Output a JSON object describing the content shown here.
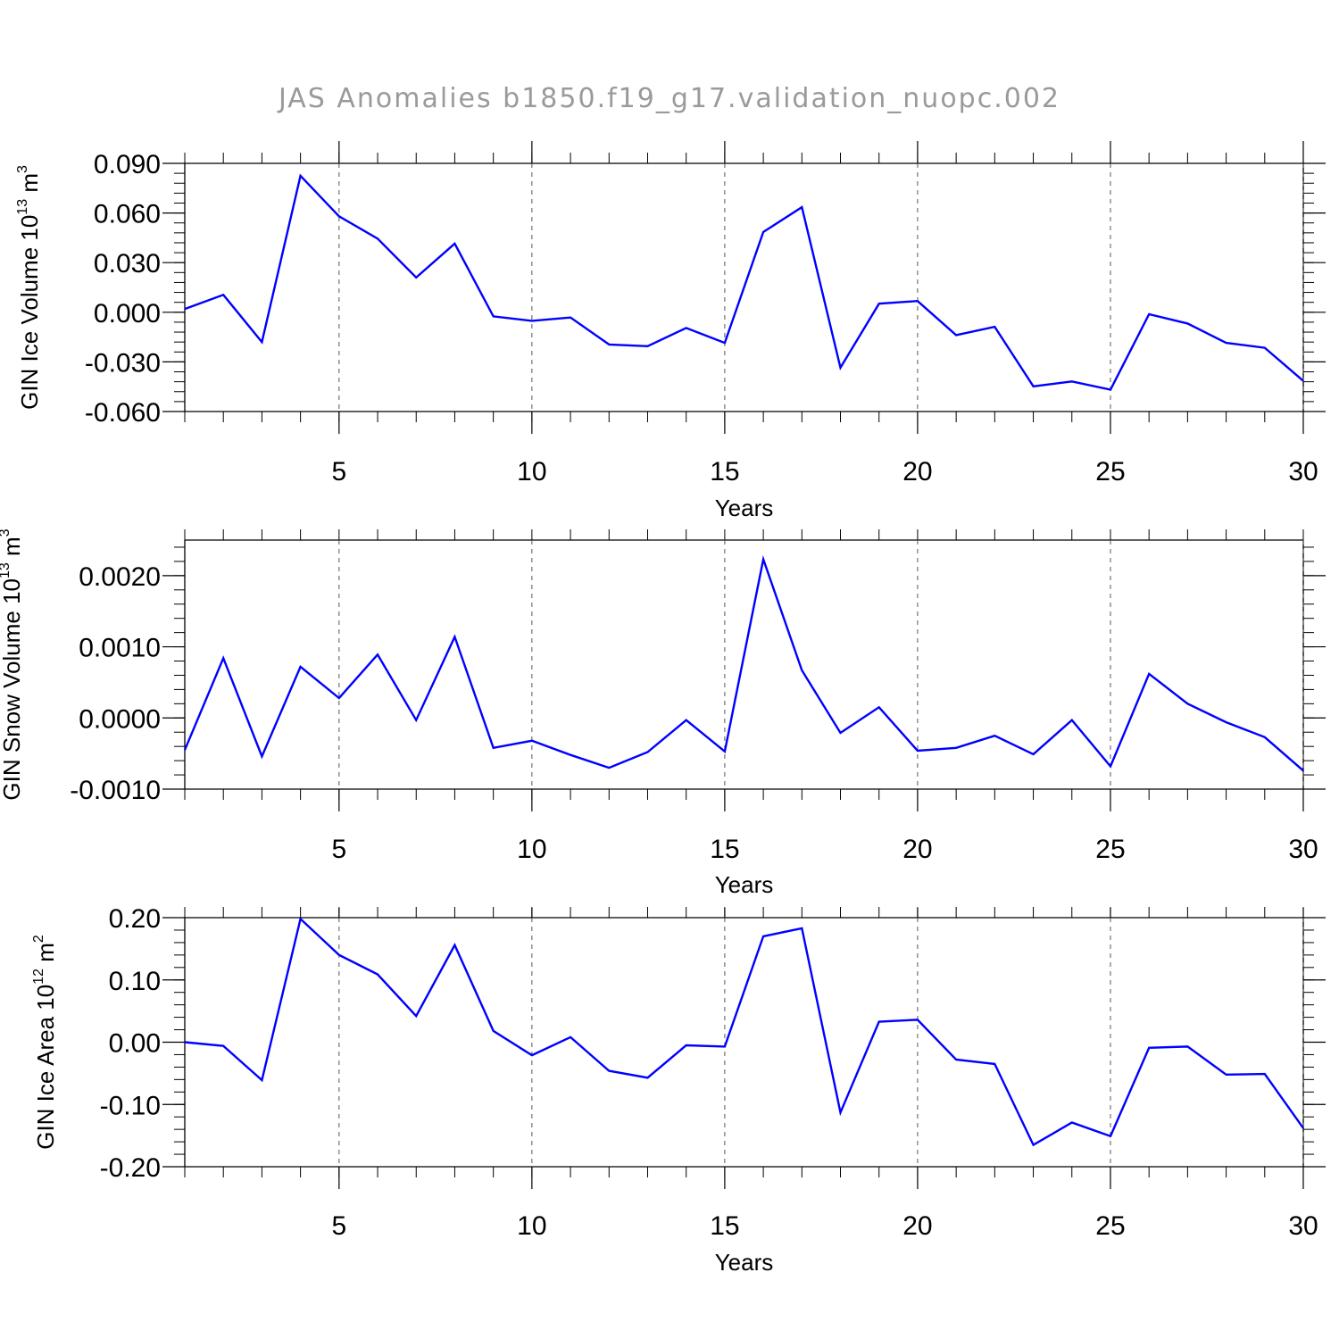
{
  "title": "JAS Anomalies b1850.f19_g17.validation_nuopc.002",
  "chart_data": [
    {
      "type": "line",
      "xlabel": "Years",
      "ylabel": {
        "text": "GIN Ice Volume 10",
        "exp": "13",
        "unit": " m",
        "unit_exp": "3"
      },
      "xlim": [
        1,
        30
      ],
      "ylim": [
        -0.06,
        0.09
      ],
      "xticks": [
        5,
        10,
        15,
        20,
        25,
        30
      ],
      "yticks": [
        -0.06,
        -0.03,
        0.0,
        0.03,
        0.06,
        0.09
      ],
      "yticklabels": [
        "-0.060",
        "-0.030",
        "0.000",
        "0.030",
        "0.060",
        "0.090"
      ],
      "grid_x": true,
      "color": "#0000ff",
      "x": [
        1,
        2,
        3,
        4,
        5,
        6,
        7,
        8,
        9,
        10,
        11,
        12,
        13,
        14,
        15,
        16,
        17,
        18,
        19,
        20,
        21,
        22,
        23,
        24,
        25,
        26,
        27,
        28,
        29,
        30
      ],
      "values": [
        0.002,
        0.0105,
        -0.018,
        0.0825,
        0.058,
        0.0445,
        0.021,
        0.0415,
        -0.0025,
        -0.0052,
        -0.0032,
        -0.0195,
        -0.0205,
        -0.0095,
        -0.0185,
        0.0485,
        0.0635,
        -0.0335,
        0.0052,
        0.0068,
        -0.0138,
        -0.0088,
        -0.0448,
        -0.0418,
        -0.0468,
        -0.0012,
        -0.0068,
        -0.0185,
        -0.0215,
        -0.0415
      ]
    },
    {
      "type": "line",
      "xlabel": "Years",
      "ylabel": {
        "text": "GIN Snow Volume 10",
        "exp": "13",
        "unit": " m",
        "unit_exp": "3"
      },
      "xlim": [
        1,
        30
      ],
      "ylim": [
        -0.001,
        0.0025
      ],
      "xticks": [
        5,
        10,
        15,
        20,
        25,
        30
      ],
      "yticks": [
        -0.001,
        0.0,
        0.001,
        0.002
      ],
      "yticklabels": [
        "-0.0010",
        "0.0000",
        "0.0010",
        "0.0020"
      ],
      "grid_x": true,
      "color": "#0000ff",
      "x": [
        1,
        2,
        3,
        4,
        5,
        6,
        7,
        8,
        9,
        10,
        11,
        12,
        13,
        14,
        15,
        16,
        17,
        18,
        19,
        20,
        21,
        22,
        23,
        24,
        25,
        26,
        27,
        28,
        29,
        30
      ],
      "values": [
        -0.00045,
        0.00084,
        -0.00054,
        0.00072,
        0.00028,
        0.00089,
        -3e-05,
        0.00114,
        -0.00042,
        -0.00032,
        -0.00052,
        -0.0007,
        -0.00048,
        -3e-05,
        -0.00047,
        0.00223,
        0.00067,
        -0.00021,
        0.00015,
        -0.00046,
        -0.00042,
        -0.00025,
        -0.00051,
        -3e-05,
        -0.00068,
        0.00062,
        0.0002,
        -6e-05,
        -0.00027,
        -0.00074
      ]
    },
    {
      "type": "line",
      "xlabel": "Years",
      "ylabel": {
        "text": "GIN Ice Area 10",
        "exp": "12",
        "unit": " m",
        "unit_exp": "2"
      },
      "xlim": [
        1,
        30
      ],
      "ylim": [
        -0.2,
        0.2
      ],
      "xticks": [
        5,
        10,
        15,
        20,
        25,
        30
      ],
      "yticks": [
        -0.2,
        -0.1,
        0.0,
        0.1,
        0.2
      ],
      "yticklabels": [
        "-0.20",
        "-0.10",
        "0.00",
        "0.10",
        "0.20"
      ],
      "grid_x": true,
      "color": "#0000ff",
      "x": [
        1,
        2,
        3,
        4,
        5,
        6,
        7,
        8,
        9,
        10,
        11,
        12,
        13,
        14,
        15,
        16,
        17,
        18,
        19,
        20,
        21,
        22,
        23,
        24,
        25,
        26,
        27,
        28,
        29,
        30
      ],
      "values": [
        0.0,
        -0.006,
        -0.061,
        0.198,
        0.14,
        0.109,
        0.042,
        0.156,
        0.018,
        -0.021,
        0.008,
        -0.046,
        -0.057,
        -0.005,
        -0.007,
        0.17,
        0.183,
        -0.113,
        0.033,
        0.036,
        -0.028,
        -0.035,
        -0.165,
        -0.129,
        -0.151,
        -0.009,
        -0.007,
        -0.052,
        -0.051,
        -0.138
      ]
    }
  ]
}
